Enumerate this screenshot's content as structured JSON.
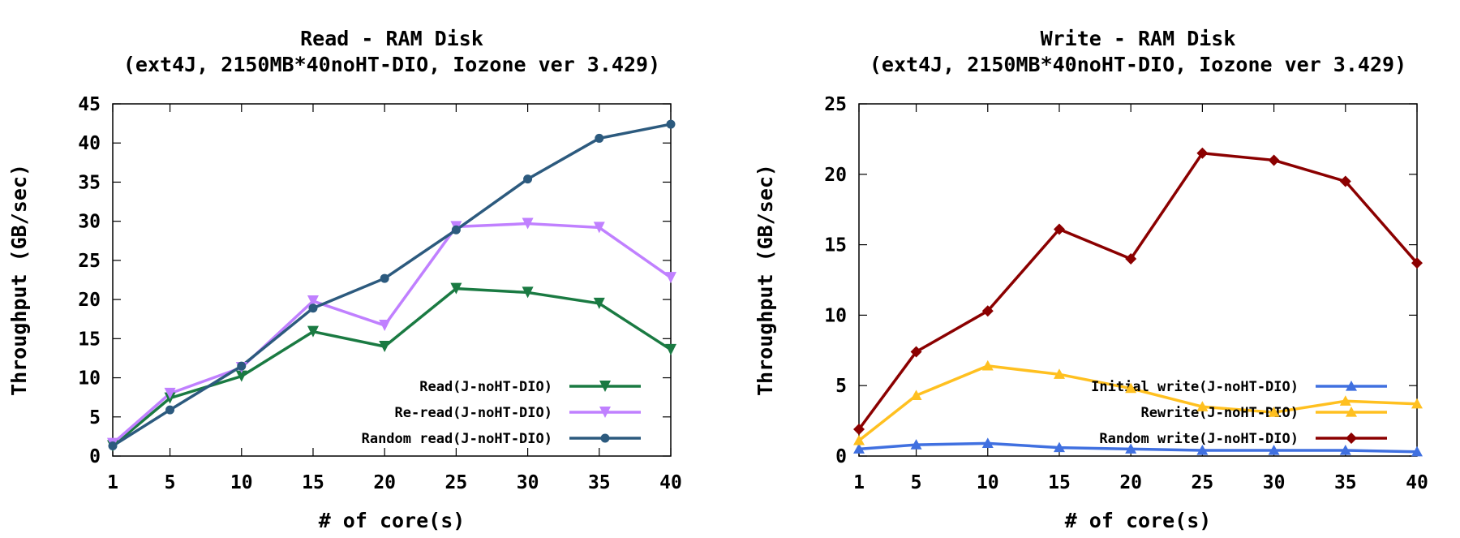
{
  "chart_data": [
    {
      "type": "line",
      "title": "Read - RAM Disk",
      "subtitle": "(ext4J, 2150MB*40noHT-DIO, Iozone ver 3.429)",
      "xlabel": "# of core(s)",
      "ylabel": "Throughput (GB/sec)",
      "x": [
        1,
        5,
        10,
        15,
        20,
        25,
        30,
        35,
        40
      ],
      "xticks": [
        1,
        5,
        10,
        15,
        20,
        25,
        30,
        35,
        40
      ],
      "ylim": [
        0,
        45
      ],
      "yticks": [
        0,
        5,
        10,
        15,
        20,
        25,
        30,
        35,
        40,
        45
      ],
      "legend_position": "bottom-right",
      "series": [
        {
          "name": "Read(J-noHT-DIO)",
          "color": "#1a7a42",
          "marker": "triangle-down",
          "values": [
            1.3,
            7.4,
            10.2,
            15.9,
            14.0,
            21.4,
            20.9,
            19.5,
            13.6
          ]
        },
        {
          "name": "Re-read(J-noHT-DIO)",
          "color": "#c080ff",
          "marker": "triangle-down",
          "values": [
            1.6,
            8.0,
            11.3,
            19.8,
            16.7,
            29.3,
            29.7,
            29.2,
            22.8
          ]
        },
        {
          "name": "Random read(J-noHT-DIO)",
          "color": "#2c5a7e",
          "marker": "circle",
          "values": [
            1.3,
            5.9,
            11.5,
            18.9,
            22.7,
            28.9,
            35.4,
            40.6,
            42.4
          ]
        }
      ]
    },
    {
      "type": "line",
      "title": "Write - RAM Disk",
      "subtitle": "(ext4J, 2150MB*40noHT-DIO, Iozone ver 3.429)",
      "xlabel": "# of core(s)",
      "ylabel": "Throughput (GB/sec)",
      "x": [
        1,
        5,
        10,
        15,
        20,
        25,
        30,
        35,
        40
      ],
      "xticks": [
        1,
        5,
        10,
        15,
        20,
        25,
        30,
        35,
        40
      ],
      "ylim": [
        0,
        25
      ],
      "yticks": [
        0,
        5,
        10,
        15,
        20,
        25
      ],
      "legend_position": "bottom-right",
      "series": [
        {
          "name": "Initial write(J-noHT-DIO)",
          "color": "#4070e0",
          "marker": "triangle-up",
          "values": [
            0.5,
            0.8,
            0.9,
            0.6,
            0.5,
            0.4,
            0.4,
            0.4,
            0.3
          ]
        },
        {
          "name": "Rewrite(J-noHT-DIO)",
          "color": "#ffc020",
          "marker": "triangle-up",
          "values": [
            1.1,
            4.3,
            6.4,
            5.8,
            4.8,
            3.5,
            3.1,
            3.9,
            3.7
          ]
        },
        {
          "name": "Random write(J-noHT-DIO)",
          "color": "#8b0000",
          "marker": "diamond",
          "values": [
            1.9,
            7.4,
            10.3,
            16.1,
            14.0,
            21.5,
            21.0,
            19.5,
            13.7
          ]
        }
      ]
    }
  ]
}
